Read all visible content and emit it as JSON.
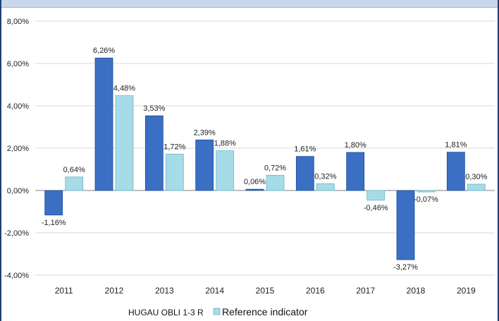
{
  "colors": {
    "series1": "#3a6fc4",
    "series1_dark": "#1d4e99",
    "series2": "#a6dbe8",
    "series2_dark": "#6fb7cc",
    "grid": "#d9d9d9",
    "axis": "#7f7f7f"
  },
  "chart_data": {
    "type": "bar",
    "categories": [
      "2011",
      "2012",
      "2013",
      "2014",
      "2015",
      "2016",
      "2017",
      "2018",
      "2019"
    ],
    "series": [
      {
        "name": "HUGAU OBLI 1-3 R",
        "values": [
          -1.16,
          6.26,
          3.53,
          2.39,
          0.06,
          1.61,
          1.8,
          -3.27,
          1.81
        ],
        "labels": [
          "-1,16%",
          "6,26%",
          "3,53%",
          "2,39%",
          "0,06%",
          "1,61%",
          "1,80%",
          "-3,27%",
          "1,81%"
        ]
      },
      {
        "name": "Reference indicator",
        "values": [
          0.64,
          4.48,
          1.72,
          1.88,
          0.72,
          0.32,
          -0.46,
          -0.07,
          0.3
        ],
        "labels": [
          "0,64%",
          "4,48%",
          "1,72%",
          "1,88%",
          "0,72%",
          "0,32%",
          "-0,46%",
          "-0,07%",
          "0,30%"
        ]
      }
    ],
    "ylim": [
      -4,
      8
    ],
    "yticks": [
      -4,
      -2,
      0,
      2,
      4,
      6,
      8
    ],
    "ytick_labels": [
      "-4,00%",
      "-2,00%",
      "0,00%",
      "2,00%",
      "4,00%",
      "6,00%",
      "8,00%"
    ],
    "grid": true,
    "legend": "bottom-center",
    "title": "",
    "xlabel": "",
    "ylabel": ""
  }
}
